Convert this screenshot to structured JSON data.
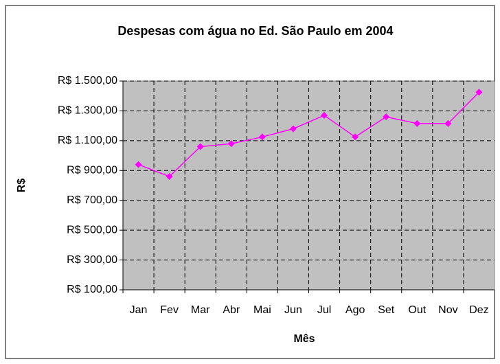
{
  "chart_data": {
    "type": "line",
    "title": "Despesas com água no Ed. São Paulo em 2004",
    "x_label": "Mês",
    "y_label": "R$",
    "categories": [
      "Jan",
      "Fev",
      "Mar",
      "Abr",
      "Mai",
      "Jun",
      "Jul",
      "Ago",
      "Set",
      "Out",
      "Nov",
      "Dez"
    ],
    "series": [
      {
        "color": "#ff00ff",
        "values": [
          940,
          860,
          1060,
          1080,
          1125,
          1180,
          1270,
          1125,
          1260,
          1215,
          1215,
          1425
        ]
      }
    ],
    "ylim": [
      100,
      1500
    ],
    "yticks": [
      {
        "value": 100,
        "label": "R$ 100,00"
      },
      {
        "value": 300,
        "label": "R$ 300,00"
      },
      {
        "value": 500,
        "label": "R$ 500,00"
      },
      {
        "value": 700,
        "label": "R$ 700,00"
      },
      {
        "value": 900,
        "label": "R$ 900,00"
      },
      {
        "value": 1100,
        "label": "R$ 1.100,00"
      },
      {
        "value": 1300,
        "label": "R$ 1.300,00"
      },
      {
        "value": 1500,
        "label": "R$ 1.500,00"
      }
    ],
    "grid": true
  }
}
